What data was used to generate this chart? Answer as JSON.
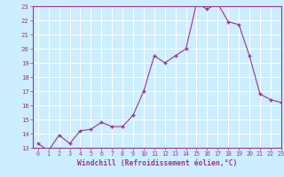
{
  "x": [
    0,
    1,
    2,
    3,
    4,
    5,
    6,
    7,
    8,
    9,
    10,
    11,
    12,
    13,
    14,
    15,
    16,
    17,
    18,
    19,
    20,
    21,
    22,
    23
  ],
  "y": [
    13.3,
    12.8,
    13.9,
    13.3,
    14.2,
    14.3,
    14.8,
    14.5,
    14.5,
    15.3,
    17.0,
    19.5,
    19.0,
    19.5,
    20.0,
    23.2,
    22.8,
    23.2,
    21.9,
    21.7,
    19.5,
    16.8,
    16.4,
    16.2
  ],
  "line_color": "#993399",
  "marker_color": "#993399",
  "bg_color": "#cceeff",
  "grid_color": "#ffffff",
  "xlabel": "Windchill (Refroidissement éolien,°C)",
  "xlabel_color": "#993399",
  "tick_color": "#993399",
  "ylim": [
    13,
    23
  ],
  "xlim": [
    -0.5,
    23
  ],
  "yticks": [
    13,
    14,
    15,
    16,
    17,
    18,
    19,
    20,
    21,
    22,
    23
  ],
  "xticks": [
    0,
    1,
    2,
    3,
    4,
    5,
    6,
    7,
    8,
    9,
    10,
    11,
    12,
    13,
    14,
    15,
    16,
    17,
    18,
    19,
    20,
    21,
    22,
    23
  ]
}
